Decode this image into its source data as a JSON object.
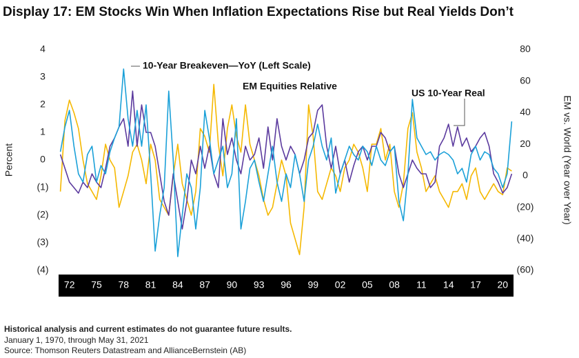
{
  "chart_data": {
    "type": "line",
    "title": "Display 17: EM Stocks Win When Inflation Expectations Rise but Real Yields Don’t",
    "ylabel": "Percent",
    "y2label": "EM vs. World (Year over Year)",
    "notes": [
      "Historical analysis and current estimates do not guarantee future results.",
      "January 1, 1970, through May 31, 2021",
      "Source: Thomson Reuters Datastream and AllianceBernstein (AB)"
    ],
    "x": [
      1971,
      1971.5,
      1972,
      1972.5,
      1973,
      1973.5,
      1974,
      1974.5,
      1975,
      1975.5,
      1976,
      1976.5,
      1977,
      1977.5,
      1978,
      1978.5,
      1979,
      1979.5,
      1980,
      1980.5,
      1981,
      1981.5,
      1982,
      1982.5,
      1983,
      1983.5,
      1984,
      1984.5,
      1985,
      1985.5,
      1986,
      1986.5,
      1987,
      1987.5,
      1988,
      1988.5,
      1989,
      1989.5,
      1990,
      1990.5,
      1991,
      1991.5,
      1992,
      1992.5,
      1993,
      1993.5,
      1994,
      1994.5,
      1995,
      1995.5,
      1996,
      1996.5,
      1997,
      1997.5,
      1998,
      1998.5,
      1999,
      1999.5,
      2000,
      2000.5,
      2001,
      2001.5,
      2002,
      2002.5,
      2003,
      2003.5,
      2004,
      2004.5,
      2005,
      2005.5,
      2006,
      2006.5,
      2007,
      2007.5,
      2008,
      2008.5,
      2009,
      2009.5,
      2010,
      2010.5,
      2011,
      2011.5,
      2012,
      2012.5,
      2013,
      2013.5,
      2014,
      2014.5,
      2015,
      2015.5,
      2016,
      2016.5,
      2017,
      2017.5,
      2018,
      2018.5,
      2019,
      2019.5,
      2020,
      2020.5,
      2021
    ],
    "series": [
      {
        "name": "EM Equities Relative",
        "color": "#f5b800",
        "axis": "y2",
        "values": [
          -10,
          35,
          48,
          40,
          30,
          10,
          -5,
          -10,
          -15,
          0,
          20,
          10,
          5,
          -20,
          -10,
          0,
          15,
          20,
          10,
          -5,
          20,
          10,
          -15,
          -20,
          -25,
          0,
          20,
          -5,
          -15,
          -25,
          -10,
          30,
          25,
          15,
          58,
          20,
          0,
          30,
          45,
          25,
          15,
          45,
          20,
          10,
          0,
          -15,
          -25,
          -20,
          -5,
          10,
          0,
          -30,
          -40,
          -50,
          -20,
          45,
          25,
          -10,
          -15,
          -5,
          5,
          0,
          -10,
          5,
          10,
          20,
          15,
          5,
          -10,
          20,
          20,
          30,
          10,
          20,
          -10,
          -20,
          -5,
          30,
          40,
          15,
          5,
          -10,
          -5,
          0,
          -10,
          -15,
          -20,
          -10,
          -10,
          -5,
          -15,
          0,
          5,
          -10,
          -15,
          -10,
          -5,
          -10,
          -12,
          5,
          3
        ]
      },
      {
        "name": "US 10-Year Real",
        "color": "#5b3a9e",
        "values": [
          0.2,
          -0.3,
          -0.8,
          -1.0,
          -1.2,
          -0.8,
          -1.0,
          -0.5,
          -0.8,
          -1.0,
          -0.3,
          0.5,
          0.8,
          1.2,
          1.5,
          0.5,
          2.5,
          0.5,
          2.0,
          1.0,
          1.0,
          0.5,
          -0.5,
          -1.5,
          -2.0,
          -0.5,
          -1.5,
          -2.5,
          -1.5,
          0.0,
          -0.5,
          0.5,
          -0.3,
          0.5,
          -0.5,
          -1.0,
          1.5,
          0.2,
          0.8,
          0.0,
          -0.5,
          0.5,
          0.0,
          0.2,
          0.8,
          -0.3,
          1.2,
          0.0,
          1.5,
          0.5,
          0.0,
          0.5,
          0.2,
          -0.5,
          0.0,
          0.8,
          1.0,
          1.8,
          2.0,
          0.5,
          -0.3,
          0.5,
          -0.5,
          0.0,
          -0.8,
          -0.2,
          0.3,
          0.5,
          0.0,
          0.5,
          0.5,
          1.0,
          0.8,
          0.3,
          0.5,
          -0.5,
          -1.0,
          -0.5,
          0.0,
          -0.3,
          -0.5,
          -0.5,
          -1.0,
          -0.8,
          0.5,
          0.8,
          1.3,
          0.5,
          1.2,
          0.5,
          0.8,
          0.3,
          0.5,
          0.8,
          1.0,
          0.5,
          -0.5,
          -0.8,
          -1.2,
          -1.0,
          -0.5
        ]
      },
      {
        "name": "10-Year Breakeven—YoY (Left Scale)",
        "color": "#1aa0d8",
        "values": [
          0.3,
          1.2,
          1.8,
          0.5,
          -0.5,
          -0.8,
          0.2,
          0.5,
          -0.8,
          -0.2,
          -0.5,
          0.3,
          0.8,
          1.2,
          3.3,
          1.5,
          0.5,
          1.8,
          0.5,
          2.0,
          -0.5,
          -3.3,
          -2.0,
          -1.0,
          2.5,
          0.0,
          -3.5,
          -2.0,
          -0.5,
          -1.0,
          -2.5,
          -1.0,
          1.8,
          0.8,
          -0.5,
          0.0,
          0.5,
          -1.0,
          -0.5,
          1.5,
          -2.5,
          -1.5,
          -0.3,
          0.0,
          -0.8,
          -1.5,
          -0.5,
          0.5,
          -0.8,
          -1.5,
          -0.5,
          -1.0,
          0.2,
          -0.5,
          -1.5,
          0.0,
          0.5,
          1.3,
          0.5,
          0.0,
          0.8,
          -1.2,
          -0.5,
          0.0,
          0.5,
          0.2,
          0.0,
          0.5,
          0.3,
          -0.2,
          0.5,
          0.0,
          -0.2,
          0.3,
          0.5,
          -1.5,
          -2.2,
          -0.5,
          2.2,
          0.8,
          0.5,
          0.2,
          0.3,
          0.0,
          0.2,
          0.3,
          0.2,
          0.0,
          -0.5,
          -0.3,
          -0.8,
          0.2,
          0.5,
          0.0,
          0.3,
          0.2,
          -0.3,
          -0.5,
          -1.0,
          -0.5,
          1.4
        ]
      }
    ],
    "xlim": [
      1970.8,
      2021.2
    ],
    "xticks": [
      {
        "value": 1972,
        "label": "72"
      },
      {
        "value": 1975,
        "label": "75"
      },
      {
        "value": 1978,
        "label": "78"
      },
      {
        "value": 1981,
        "label": "81"
      },
      {
        "value": 1984,
        "label": "84"
      },
      {
        "value": 1987,
        "label": "87"
      },
      {
        "value": 1990,
        "label": "90"
      },
      {
        "value": 1993,
        "label": "93"
      },
      {
        "value": 1996,
        "label": "96"
      },
      {
        "value": 1999,
        "label": "99"
      },
      {
        "value": 2002,
        "label": "02"
      },
      {
        "value": 2005,
        "label": "05"
      },
      {
        "value": 2008,
        "label": "08"
      },
      {
        "value": 2011,
        "label": "11"
      },
      {
        "value": 2014,
        "label": "14"
      },
      {
        "value": 2017,
        "label": "17"
      },
      {
        "value": 2020,
        "label": "20"
      }
    ],
    "ylim": [
      -4,
      4
    ],
    "yticks": [
      4,
      3,
      2,
      1,
      0,
      {
        "value": -1,
        "label": "(1)"
      },
      {
        "value": -2,
        "label": "(2)"
      },
      {
        "value": -3,
        "label": "(3)"
      },
      {
        "value": -4,
        "label": "(4)"
      }
    ],
    "y2lim": [
      -60,
      80
    ],
    "y2ticks": [
      80,
      60,
      40,
      20,
      0,
      {
        "value": -20,
        "label": "(20)"
      },
      {
        "value": -40,
        "label": "(40)"
      },
      {
        "value": -60,
        "label": "(60)"
      }
    ],
    "grid": false
  }
}
